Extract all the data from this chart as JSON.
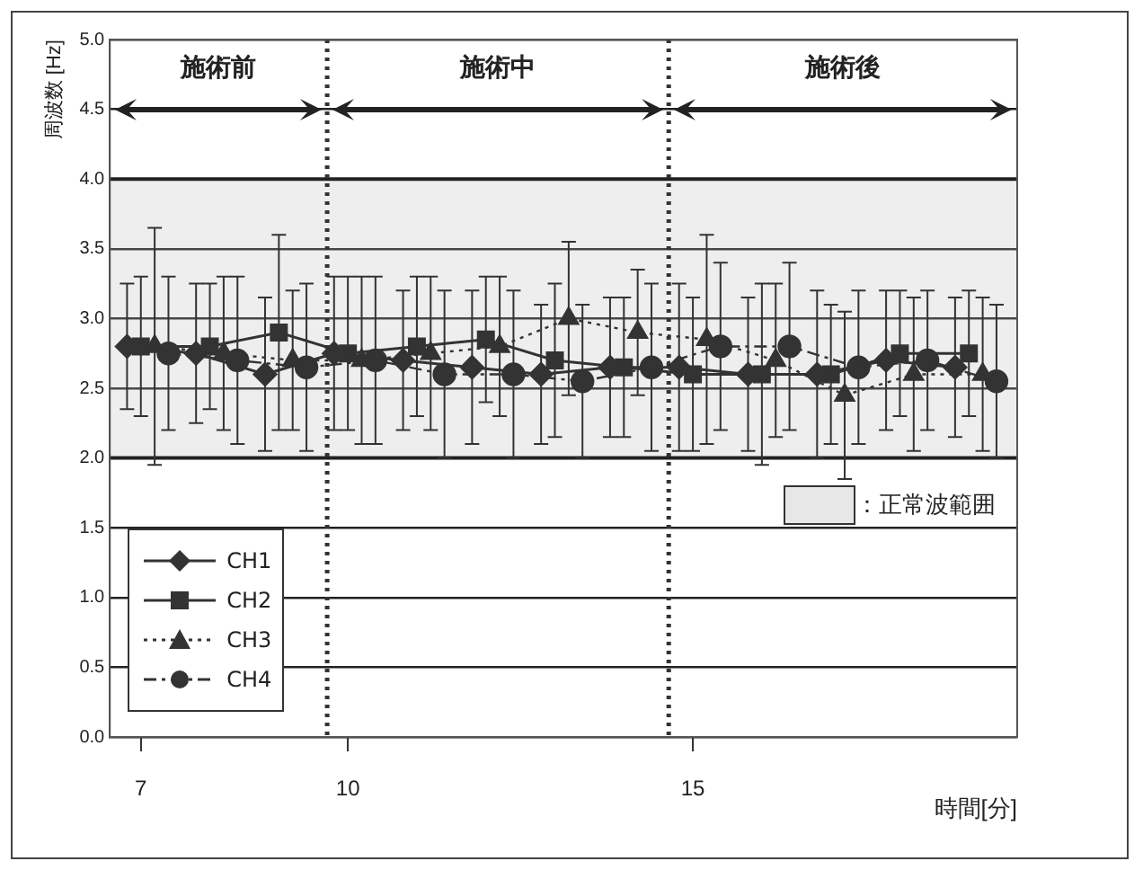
{
  "chart_data": {
    "type": "line",
    "xlabel": "時間[分]",
    "ylabel": "周波数 [Hz]",
    "xlim": [
      6.55,
      19.7
    ],
    "xticks": [
      7,
      10,
      15
    ],
    "ylim": [
      0,
      5
    ],
    "yticks": [
      {
        "value": 0,
        "label": "0.0"
      },
      0.5,
      {
        "value": 1,
        "label": "1.0"
      },
      1.5,
      {
        "value": 2,
        "label": "2.0"
      },
      2.5,
      {
        "value": 3,
        "label": "3.0"
      },
      3.5,
      {
        "value": 4,
        "label": "4.0"
      },
      4.5,
      {
        "value": 5,
        "label": "5.0"
      }
    ],
    "grid": "y",
    "legend": "bottom left",
    "series": [
      {
        "name": "CH1",
        "color": "#333333",
        "marker": "diamond",
        "line_style": "solid",
        "x": [
          6.8,
          7.8,
          8.8,
          9.8,
          10.8,
          11.8,
          12.8,
          13.8,
          14.8,
          15.8,
          16.8,
          17.8,
          18.8
        ],
        "values": [
          2.8,
          2.75,
          2.6,
          2.75,
          2.7,
          2.65,
          2.6,
          2.65,
          2.65,
          2.6,
          2.6,
          2.7,
          2.65
        ],
        "errors": [
          0.45,
          0.5,
          0.55,
          0.55,
          0.5,
          0.55,
          0.5,
          0.5,
          0.6,
          0.55,
          0.6,
          0.5,
          0.5
        ]
      },
      {
        "name": "CH2",
        "color": "#333333",
        "marker": "square",
        "line_style": "solid",
        "x": [
          7,
          8,
          9,
          10,
          11,
          12,
          13,
          14,
          15,
          16,
          17,
          18,
          19
        ],
        "values": [
          2.8,
          2.8,
          2.9,
          2.75,
          2.8,
          2.85,
          2.7,
          2.65,
          2.6,
          2.6,
          2.6,
          2.75,
          2.75
        ],
        "errors": [
          0.5,
          0.45,
          0.7,
          0.55,
          0.5,
          0.45,
          0.55,
          0.5,
          0.55,
          0.65,
          0.5,
          0.45,
          0.45
        ]
      },
      {
        "name": "CH3",
        "color": "#333333",
        "marker": "triangle",
        "line_style": "dotted",
        "x": [
          7.2,
          8.2,
          9.2,
          10.2,
          11.2,
          12.2,
          13.2,
          14.2,
          15.2,
          16.2,
          17.2,
          18.2,
          19.2
        ],
        "values": [
          2.8,
          2.75,
          2.7,
          2.7,
          2.75,
          2.8,
          3.0,
          2.9,
          2.85,
          2.7,
          2.45,
          2.6,
          2.6
        ],
        "errors": [
          0.85,
          0.55,
          0.5,
          0.6,
          0.55,
          0.5,
          0.55,
          0.45,
          0.75,
          0.55,
          0.6,
          0.55,
          0.55
        ]
      },
      {
        "name": "CH4",
        "color": "#333333",
        "marker": "circle",
        "line_style": "dashed",
        "x": [
          7.4,
          8.4,
          9.4,
          10.4,
          11.4,
          12.4,
          13.4,
          14.4,
          15.4,
          16.4,
          17.4,
          18.4,
          19.4
        ],
        "values": [
          2.75,
          2.7,
          2.65,
          2.7,
          2.6,
          2.6,
          2.55,
          2.65,
          2.8,
          2.8,
          2.65,
          2.7,
          2.55
        ],
        "errors": [
          0.55,
          0.6,
          0.6,
          0.6,
          0.6,
          0.6,
          0.55,
          0.6,
          0.6,
          0.6,
          0.55,
          0.5,
          0.55
        ]
      }
    ],
    "ref_lines": [
      {
        "axis": "x",
        "value": 9.7,
        "line_style": "dotted",
        "color": "#333333"
      },
      {
        "axis": "x",
        "value": 14.65,
        "line_style": "dotted",
        "color": "#333333"
      }
    ],
    "bands": [
      {
        "axis": "y",
        "from": 2,
        "to": 4,
        "label": "：正常波範囲",
        "color": "#bbbbbb"
      }
    ],
    "annotations": [
      "施術前",
      "施術中",
      "施術後"
    ]
  }
}
